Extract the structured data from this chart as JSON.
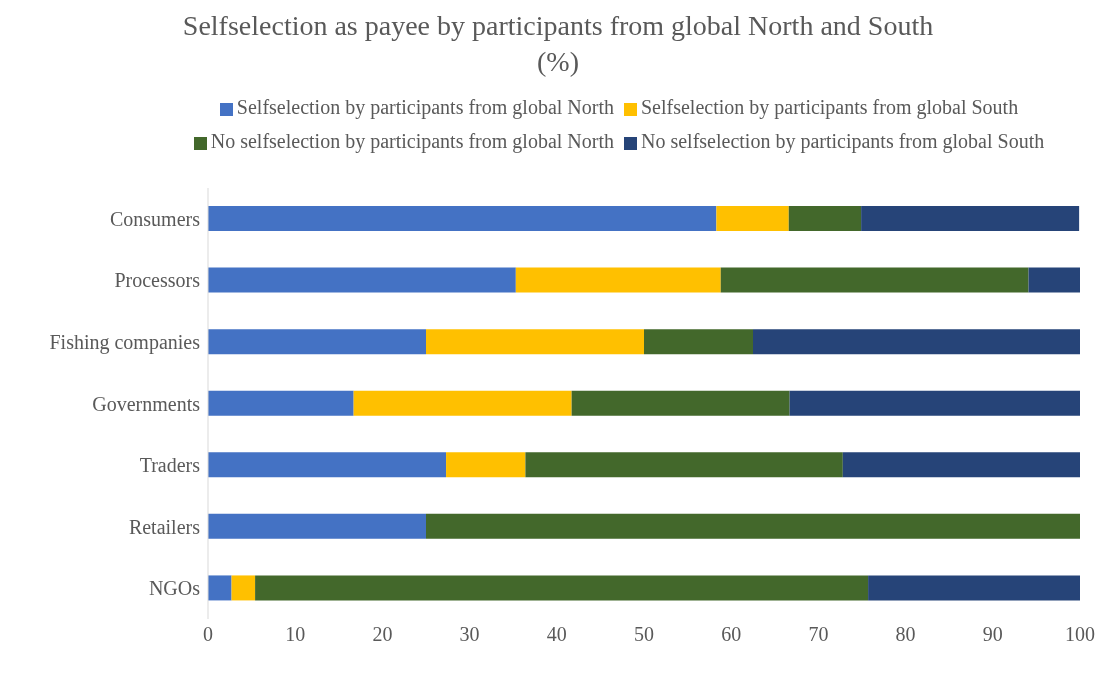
{
  "chart_data": {
    "type": "bar",
    "orientation": "horizontal",
    "stacked": true,
    "title": "Selfselection as payee by participants from global North and South\n(%)",
    "categories": [
      "Consumers",
      "Processors",
      "Fishing companies",
      "Governments",
      "Traders",
      "Retailers",
      "NGOs"
    ],
    "series": [
      {
        "name": "Selfselection by participants from global North",
        "color": "#4472c4",
        "values": [
          58.3,
          35.3,
          25,
          16.7,
          27.3,
          25,
          2.7
        ]
      },
      {
        "name": "Selfselection by participants from global South",
        "color": "#ffc000",
        "values": [
          8.3,
          23.5,
          25,
          25,
          9.1,
          0,
          2.7
        ]
      },
      {
        "name": "No selfselection by participants from global North",
        "color": "#43682b",
        "values": [
          8.3,
          35.3,
          12.5,
          25,
          36.4,
          75,
          70.3
        ]
      },
      {
        "name": "No selfselection by participants from global South",
        "color": "#264478",
        "values": [
          25,
          5.9,
          37.5,
          33.3,
          27.3,
          0,
          24.3
        ]
      }
    ],
    "xlim": [
      0,
      100
    ],
    "xticks": [
      0,
      10,
      20,
      30,
      40,
      50,
      60,
      70,
      80,
      90,
      100
    ],
    "grid": false,
    "legend": "top"
  }
}
